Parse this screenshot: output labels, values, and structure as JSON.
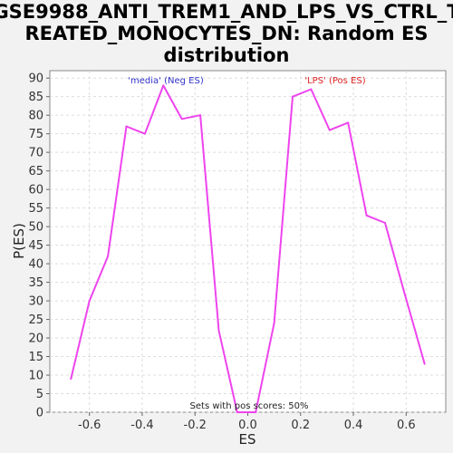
{
  "chart_data": {
    "type": "line",
    "title_lines": [
      "GSE9988_ANTI_TREM1_AND_LPS_VS_CTRL_T",
      "REATED_MONOCYTES_DN: Random ES",
      "distribution"
    ],
    "xlabel": "ES",
    "ylabel": "P(ES)",
    "xlim": [
      -0.75,
      0.75
    ],
    "ylim": [
      0,
      92
    ],
    "x_ticks": [
      -0.6,
      -0.4,
      -0.2,
      0.0,
      0.2,
      0.4,
      0.6
    ],
    "x_tick_labels": [
      "-0.6",
      "-0.4",
      "-0.2",
      "0.0",
      "0.2",
      "0.4",
      "0.6"
    ],
    "y_ticks": [
      0,
      5,
      10,
      15,
      20,
      25,
      30,
      35,
      40,
      45,
      50,
      55,
      60,
      65,
      70,
      75,
      80,
      85,
      90
    ],
    "y_tick_labels": [
      "0",
      "5",
      "10",
      "15",
      "20",
      "25",
      "30",
      "35",
      "40",
      "45",
      "50",
      "55",
      "60",
      "65",
      "70",
      "75",
      "80",
      "85",
      "90"
    ],
    "grid": true,
    "series": [
      {
        "color": "#ee44ee",
        "x": [
          -0.67,
          -0.6,
          -0.53,
          -0.46,
          -0.39,
          -0.32,
          -0.25,
          -0.18,
          -0.11,
          -0.04,
          0.03,
          0.1,
          0.17,
          0.24,
          0.31,
          0.38,
          0.45,
          0.52,
          0.59,
          0.67
        ],
        "y": [
          9,
          30,
          42,
          77,
          75,
          88,
          79,
          80,
          22,
          0,
          0,
          24,
          85,
          87,
          76,
          78,
          53,
          51,
          33,
          13
        ]
      }
    ],
    "annotations": [
      {
        "text": "'media' (Neg ES)",
        "color": "#3333cc"
      },
      {
        "text": "'LPS' (Pos ES)",
        "color": "#dd2222"
      }
    ],
    "footer": "Sets with pos scores: 50%"
  }
}
